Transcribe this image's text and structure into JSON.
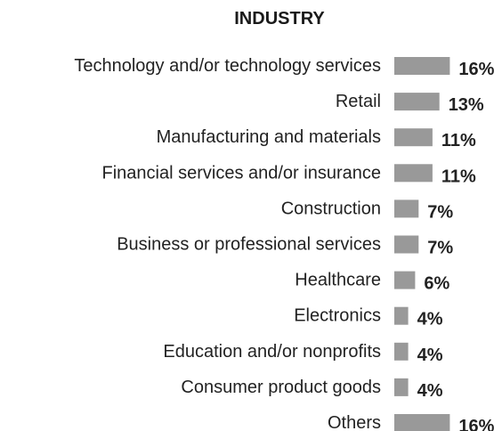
{
  "chart_data": {
    "type": "bar",
    "orientation": "horizontal",
    "title": "INDUSTRY",
    "xlabel": "",
    "ylabel": "",
    "categories": [
      "Technology and/or technology services",
      "Retail",
      "Manufacturing and materials",
      "Financial services and/or insurance",
      "Construction",
      "Business or professional services",
      "Healthcare",
      "Electronics",
      "Education and/or nonprofits",
      "Consumer product goods",
      "Others"
    ],
    "values": [
      16,
      13,
      11,
      11,
      7,
      7,
      6,
      4,
      4,
      4,
      16
    ],
    "value_labels": [
      "16%",
      "13%",
      "11%",
      "11%",
      "7%",
      "7%",
      "6%",
      "4%",
      "4%",
      "4%",
      "16%"
    ],
    "unit": "%",
    "grid": false,
    "legend": "none",
    "bar_color": "#999999"
  }
}
